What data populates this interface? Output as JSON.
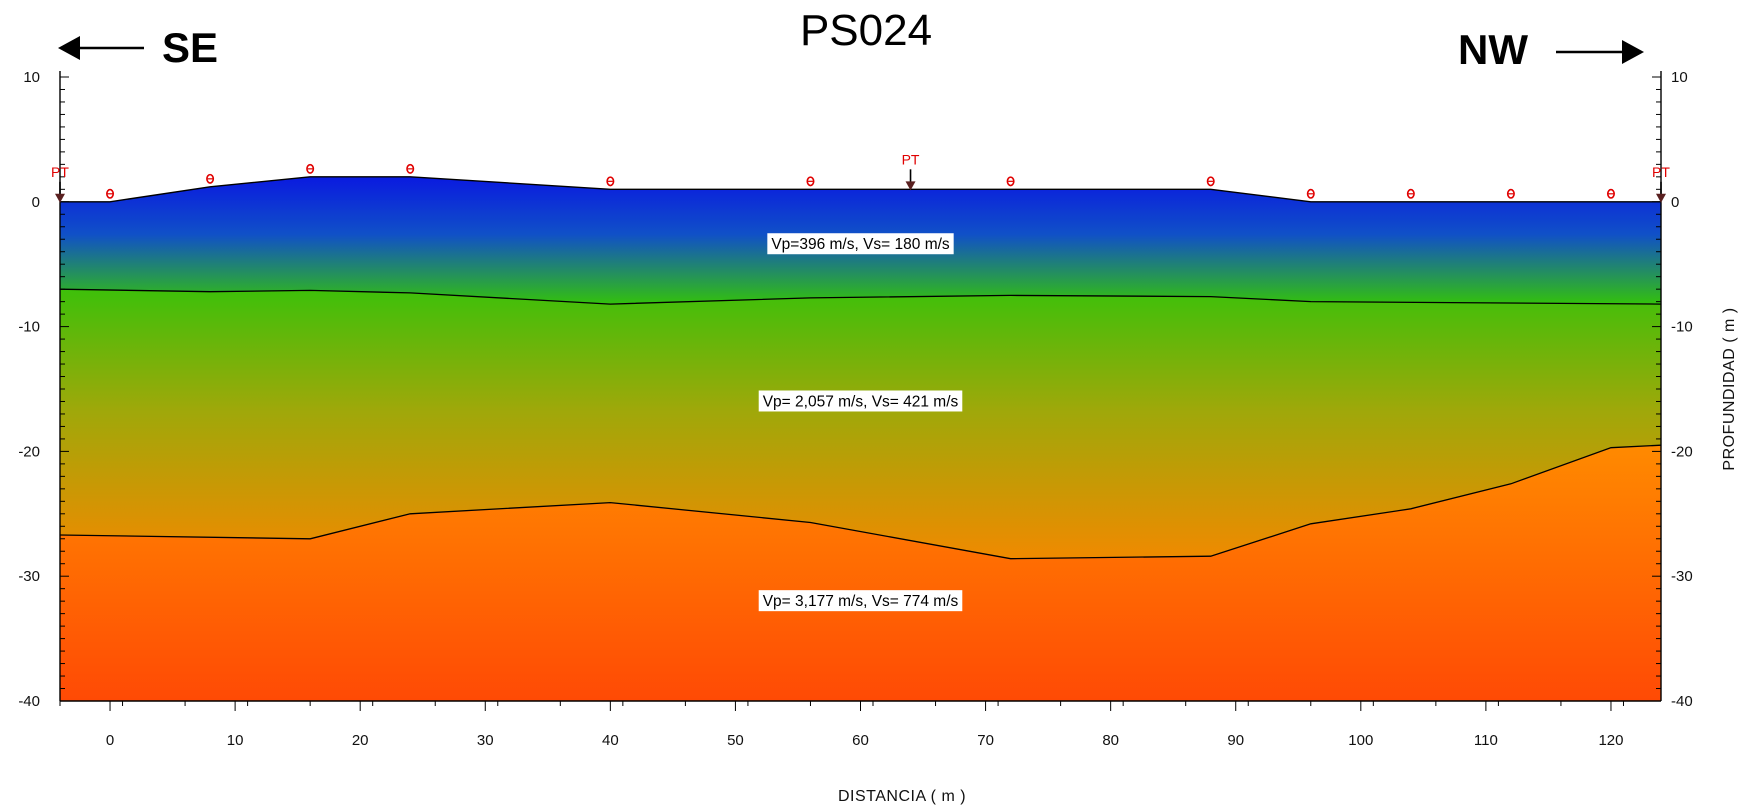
{
  "chart_data": {
    "type": "area",
    "title": "PS024",
    "direction_left": "SE",
    "direction_right": "NW",
    "xlabel": "DISTANCIA  ( m )",
    "ylabel": "PROFUNDIDAD  ( m )",
    "xlim": [
      -4,
      124
    ],
    "ylim": [
      -40,
      10
    ],
    "x_ticks": [
      0,
      10,
      20,
      30,
      40,
      50,
      60,
      70,
      80,
      90,
      100,
      110,
      120
    ],
    "y_ticks": [
      10,
      0,
      -10,
      -20,
      -30,
      -40
    ],
    "surface": [
      {
        "x": -4,
        "y": 0
      },
      {
        "x": 0,
        "y": 0
      },
      {
        "x": 8,
        "y": 1.2
      },
      {
        "x": 16,
        "y": 2.0
      },
      {
        "x": 24,
        "y": 2.0
      },
      {
        "x": 40,
        "y": 1.0
      },
      {
        "x": 56,
        "y": 1.0
      },
      {
        "x": 72,
        "y": 1.0
      },
      {
        "x": 88,
        "y": 1.0
      },
      {
        "x": 96,
        "y": 0
      },
      {
        "x": 124,
        "y": 0
      }
    ],
    "layers": [
      {
        "label": "Vp=396 m/s, Vs= 180 m/s",
        "label_x": 60,
        "label_y": -3.4
      },
      {
        "label": "Vp= 2,057 m/s, Vs= 421 m/s",
        "label_x": 60,
        "label_y": -16
      },
      {
        "label": "Vp= 3,177 m/s, Vs= 774 m/s",
        "label_x": 60,
        "label_y": -32
      }
    ],
    "interfaces": [
      [
        {
          "x": -4,
          "y": -7.0
        },
        {
          "x": 8,
          "y": -7.2
        },
        {
          "x": 16,
          "y": -7.1
        },
        {
          "x": 24,
          "y": -7.3
        },
        {
          "x": 40,
          "y": -8.2
        },
        {
          "x": 56,
          "y": -7.7
        },
        {
          "x": 72,
          "y": -7.5
        },
        {
          "x": 88,
          "y": -7.6
        },
        {
          "x": 96,
          "y": -8.0
        },
        {
          "x": 124,
          "y": -8.2
        }
      ],
      [
        {
          "x": -4,
          "y": -26.7
        },
        {
          "x": 16,
          "y": -27.0
        },
        {
          "x": 24,
          "y": -25.0
        },
        {
          "x": 40,
          "y": -24.1
        },
        {
          "x": 56,
          "y": -25.7
        },
        {
          "x": 72,
          "y": -28.6
        },
        {
          "x": 88,
          "y": -28.4
        },
        {
          "x": 96,
          "y": -25.8
        },
        {
          "x": 104,
          "y": -24.6
        },
        {
          "x": 112,
          "y": -22.6
        },
        {
          "x": 120,
          "y": -19.7
        },
        {
          "x": 124,
          "y": -19.5
        }
      ]
    ],
    "geophones_x": [
      0,
      8,
      16,
      24,
      40,
      56,
      72,
      88,
      96,
      104,
      112,
      120
    ],
    "shot_points": [
      {
        "x": -4,
        "label": "PT"
      },
      {
        "x": 64,
        "label": "PT"
      },
      {
        "x": 124,
        "label": "PT"
      }
    ],
    "colors": {
      "layer1_top": "#0a1ae0",
      "layer1_mid": "#1050c8",
      "layer1_bottom": "#33c10c",
      "layer2_top": "#3dc00a",
      "layer2_mid": "#9fa80a",
      "layer2_bottom": "#f08a00",
      "layer3_top": "#ff8a00",
      "layer3_bottom": "#ff4a05",
      "marker": "#e00000",
      "interface": "#000000"
    }
  }
}
